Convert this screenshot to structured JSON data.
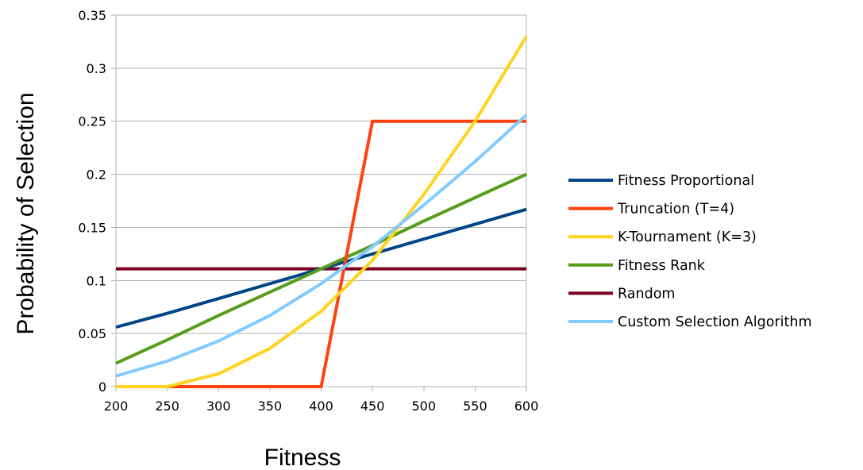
{
  "chart_data": {
    "type": "line",
    "title": "",
    "xlabel": "Fitness",
    "ylabel": "Probability of Selection",
    "xlim": [
      200,
      600
    ],
    "ylim": [
      0,
      0.35
    ],
    "x_ticks": [
      200,
      250,
      300,
      350,
      400,
      450,
      500,
      550,
      600
    ],
    "x_tick_labels": [
      "200",
      "250",
      "300",
      "350",
      "400",
      "450",
      "500",
      "550",
      "600"
    ],
    "y_ticks": [
      0,
      0.05,
      0.1,
      0.15,
      0.2,
      0.25,
      0.3,
      0.35
    ],
    "y_tick_labels": [
      "0",
      "0.05",
      "0.1",
      "0.15",
      "0.2",
      "0.25",
      "0.3",
      "0.35"
    ],
    "grid": "horizontal",
    "legend_position": "right",
    "x": [
      200,
      250,
      300,
      350,
      400,
      450,
      500,
      550,
      600
    ],
    "series": [
      {
        "name": "Fitness Proportional",
        "color": "#004586",
        "values": [
          0.056,
          0.069,
          0.083,
          0.097,
          0.111,
          0.125,
          0.139,
          0.153,
          0.167
        ]
      },
      {
        "name": "Truncation (T=4)",
        "color": "#ff420e",
        "values": [
          0,
          0,
          0,
          0,
          0,
          0.25,
          0.25,
          0.25,
          0.25
        ]
      },
      {
        "name": "K-Tournament (K=3)",
        "color": "#ffd320",
        "values": [
          0,
          0,
          0.012,
          0.036,
          0.071,
          0.119,
          0.181,
          0.25,
          0.33
        ]
      },
      {
        "name": "Fitness Rank",
        "color": "#579d1c",
        "values": [
          0.022,
          0.044,
          0.067,
          0.089,
          0.111,
          0.133,
          0.156,
          0.178,
          0.2
        ]
      },
      {
        "name": "Random",
        "color": "#7e0021",
        "values": [
          0.111,
          0.111,
          0.111,
          0.111,
          0.111,
          0.111,
          0.111,
          0.111,
          0.111
        ]
      },
      {
        "name": "Custom Selection Algorithm",
        "color": "#83caff",
        "values": [
          0.01,
          0.024,
          0.043,
          0.067,
          0.097,
          0.132,
          0.171,
          0.212,
          0.256
        ]
      }
    ]
  }
}
